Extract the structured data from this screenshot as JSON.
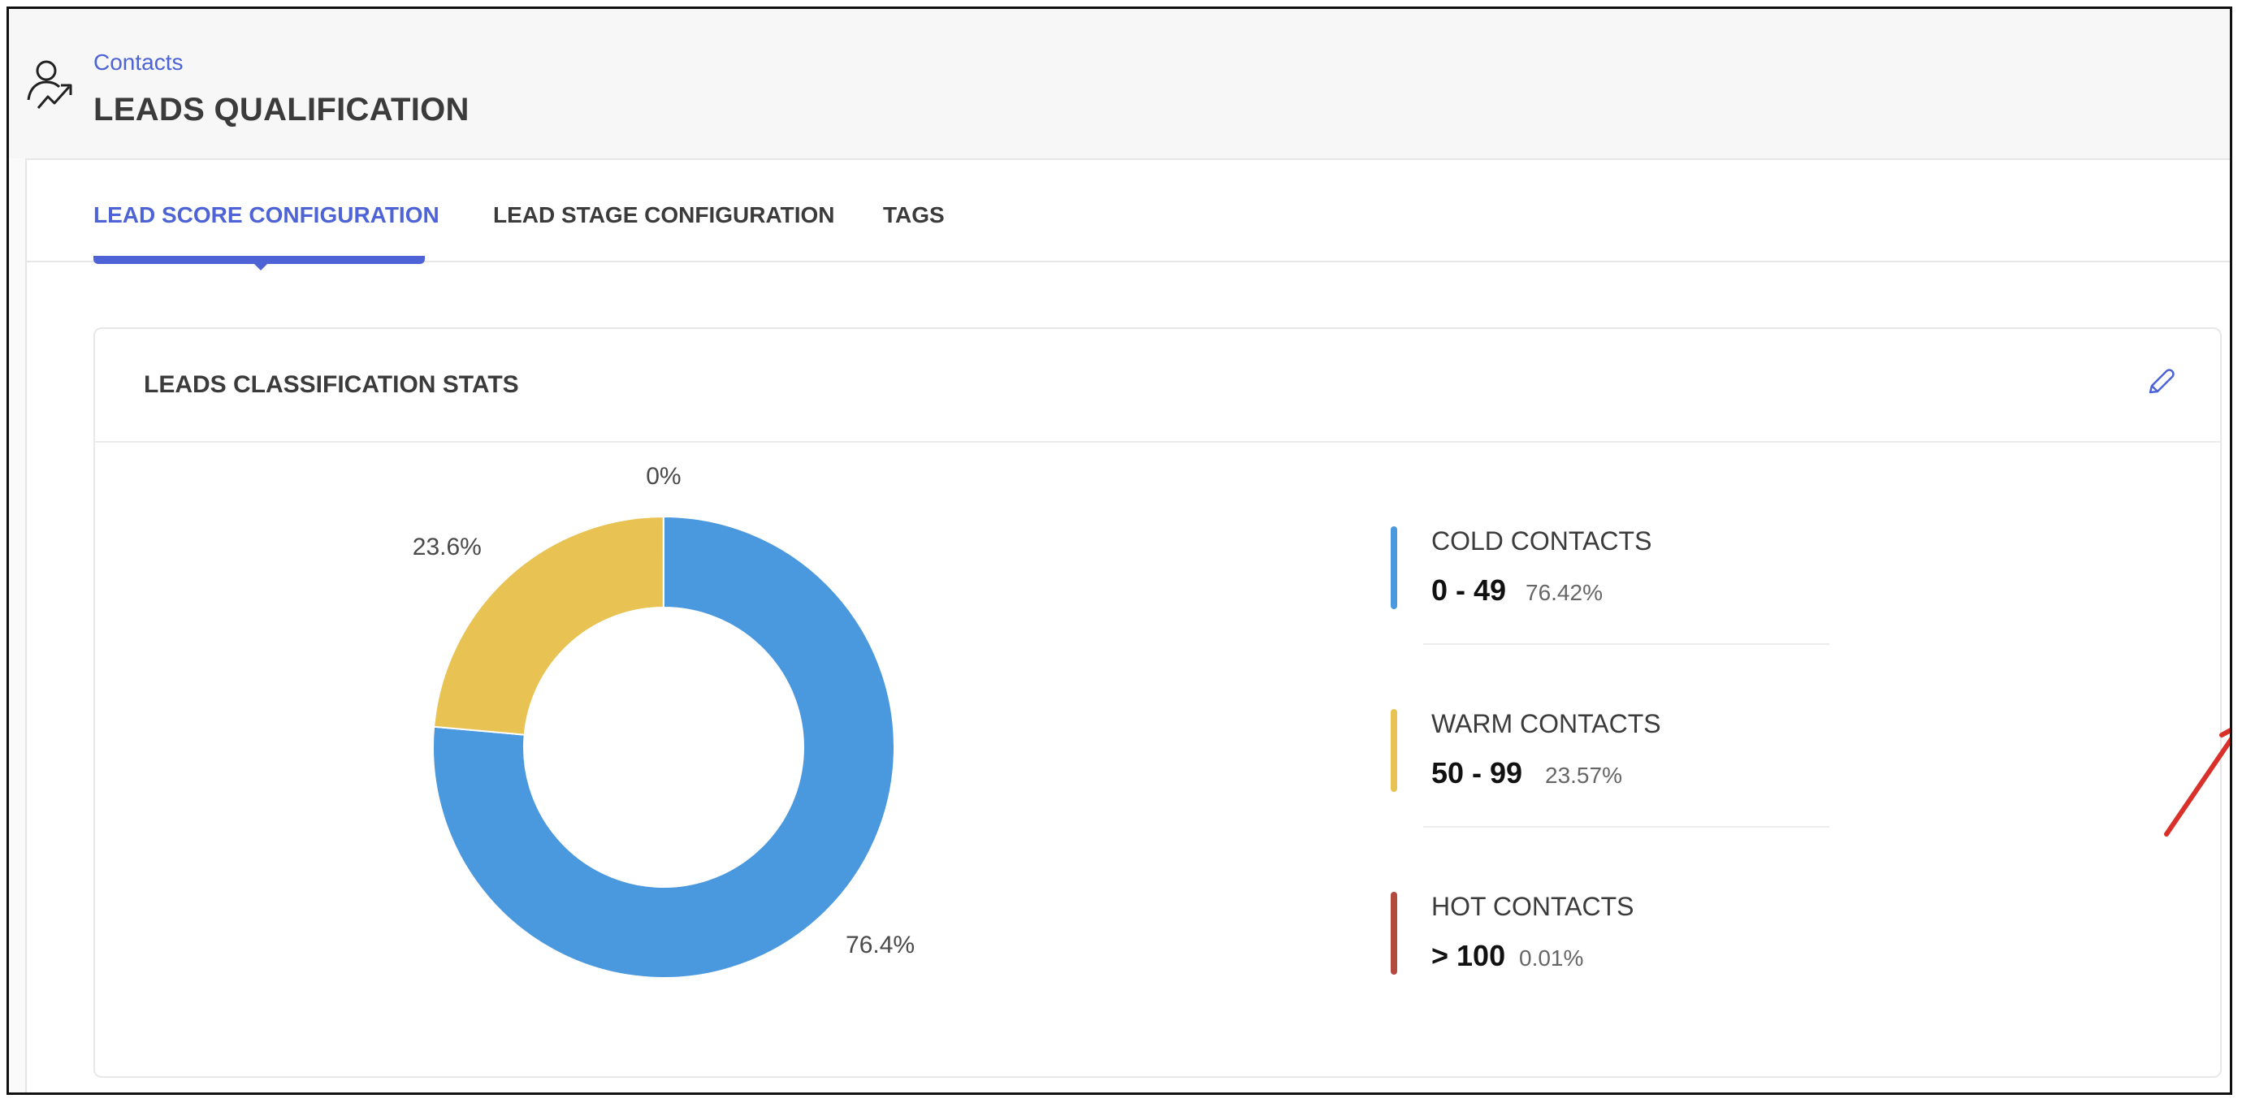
{
  "header": {
    "breadcrumb": "Contacts",
    "title": "LEADS QUALIFICATION",
    "icon": "user-growth-icon"
  },
  "tabs": [
    {
      "label": "LEAD SCORE CONFIGURATION",
      "active": true
    },
    {
      "label": "LEAD STAGE CONFIGURATION",
      "active": false
    },
    {
      "label": "TAGS",
      "active": false
    }
  ],
  "panel": {
    "title": "LEADS CLASSIFICATION STATS",
    "edit_icon": "pencil-icon"
  },
  "legend": [
    {
      "name": "COLD CONTACTS",
      "range": "0 - 49",
      "percent": "76.42%",
      "color": "#4a98dd"
    },
    {
      "name": "WARM CONTACTS",
      "range": "50 - 99",
      "percent": "23.57%",
      "color": "#e8c252"
    },
    {
      "name": "HOT CONTACTS",
      "range": "> 100",
      "percent": "0.01%",
      "color": "#b24a3e"
    }
  ],
  "chart_data": {
    "type": "pie",
    "donut": true,
    "categories": [
      "COLD CONTACTS",
      "WARM CONTACTS",
      "HOT CONTACTS"
    ],
    "values": [
      76.42,
      23.57,
      0.01
    ],
    "labels": [
      "76.4%",
      "23.6%",
      "0%"
    ],
    "colors": [
      "#4a98dd",
      "#e8c252",
      "#b24a3e"
    ],
    "start": "top",
    "direction": "clockwise"
  },
  "colors": {
    "accent": "#4d63d6",
    "annotation": "#d9302a"
  }
}
